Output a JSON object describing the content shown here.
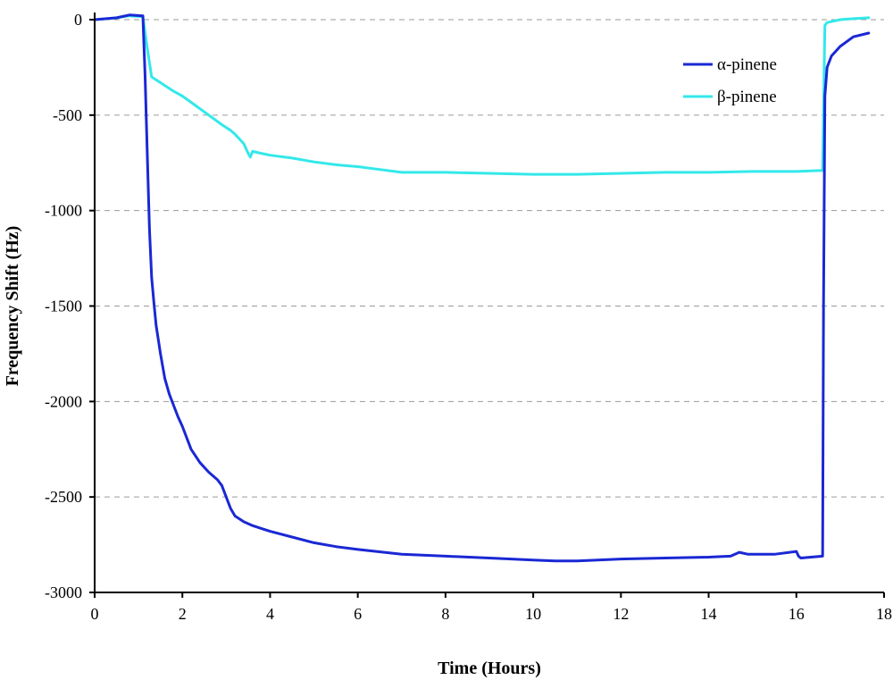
{
  "chart_data": {
    "type": "line",
    "title": "",
    "xlabel": "Time (Hours)",
    "ylabel": "Frequency Shift (Hz)",
    "xlim": [
      0,
      18
    ],
    "ylim": [
      -3000,
      0
    ],
    "xticks": [
      0,
      2,
      4,
      6,
      8,
      10,
      12,
      14,
      16,
      18
    ],
    "yticks": [
      0,
      -500,
      -1000,
      -1500,
      -2000,
      -2500,
      -3000
    ],
    "grid": "horizontal-dashed",
    "legend_position": "top-right",
    "series": [
      {
        "name": "α-pinene",
        "color": "#1a28d4",
        "x": [
          0,
          0.5,
          0.8,
          1.1,
          1.15,
          1.2,
          1.25,
          1.3,
          1.35,
          1.4,
          1.5,
          1.6,
          1.7,
          1.8,
          1.9,
          2.0,
          2.2,
          2.4,
          2.6,
          2.8,
          2.9,
          3.0,
          3.1,
          3.2,
          3.4,
          3.6,
          3.8,
          4.0,
          4.5,
          5.0,
          5.5,
          6.0,
          7.0,
          8.0,
          9.0,
          10.0,
          10.5,
          11.0,
          12.0,
          13.0,
          14.0,
          14.5,
          14.7,
          14.9,
          15.5,
          16.0,
          16.05,
          16.1,
          16.6,
          16.62,
          16.65,
          16.7,
          16.8,
          17.0,
          17.3,
          17.65
        ],
        "y": [
          0,
          10,
          25,
          20,
          -300,
          -700,
          -1100,
          -1350,
          -1480,
          -1600,
          -1750,
          -1880,
          -1960,
          -2020,
          -2080,
          -2130,
          -2250,
          -2320,
          -2370,
          -2410,
          -2440,
          -2500,
          -2560,
          -2600,
          -2630,
          -2650,
          -2665,
          -2680,
          -2710,
          -2740,
          -2760,
          -2775,
          -2800,
          -2810,
          -2820,
          -2830,
          -2835,
          -2835,
          -2825,
          -2820,
          -2815,
          -2810,
          -2790,
          -2800,
          -2800,
          -2785,
          -2810,
          -2820,
          -2810,
          -1500,
          -400,
          -250,
          -190,
          -140,
          -90,
          -70
        ]
      },
      {
        "name": "β-pinene",
        "color": "#33e8ea",
        "x": [
          0,
          0.5,
          0.8,
          1.1,
          1.2,
          1.3,
          1.5,
          1.8,
          2.0,
          2.3,
          2.6,
          2.9,
          3.0,
          3.1,
          3.2,
          3.4,
          3.5,
          3.55,
          3.6,
          3.8,
          4.0,
          4.5,
          5.0,
          5.5,
          6.0,
          6.5,
          7.0,
          8.0,
          9.0,
          10.0,
          11.0,
          12.0,
          13.0,
          14.0,
          15.0,
          16.0,
          16.6,
          16.65,
          16.7,
          17.0,
          17.3,
          17.65
        ],
        "y": [
          0,
          10,
          20,
          15,
          -150,
          -300,
          -330,
          -375,
          -400,
          -450,
          -500,
          -550,
          -565,
          -580,
          -600,
          -650,
          -700,
          -720,
          -690,
          -700,
          -710,
          -725,
          -745,
          -760,
          -770,
          -785,
          -800,
          -800,
          -805,
          -810,
          -810,
          -805,
          -800,
          -800,
          -795,
          -795,
          -790,
          -30,
          -15,
          0,
          5,
          10
        ]
      }
    ]
  }
}
